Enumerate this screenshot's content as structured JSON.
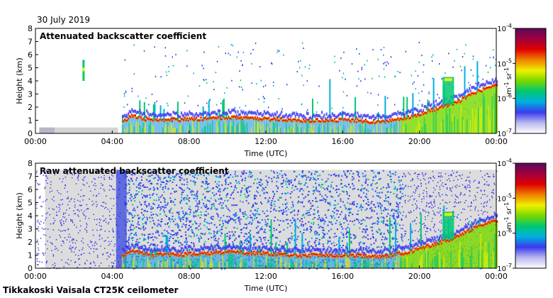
{
  "header": {
    "date": "30 July 2019",
    "footer": "Tikkakoski Vaisala CT25K ceilometer"
  },
  "colorbar": {
    "unit_base": "m",
    "unit_base_exp": "-1",
    "unit_sr": "sr",
    "unit_sr_exp": "-1",
    "stops": [
      "#ffffff",
      "#b9b9ee",
      "#3a3aef",
      "#00b0e0",
      "#00c872",
      "#78d800",
      "#f0f000",
      "#f08000",
      "#e00000",
      "#a00040",
      "#5a0a5a"
    ],
    "ticks": [
      {
        "base": "10",
        "exp": "-4",
        "value": 0.0001
      },
      {
        "base": "10",
        "exp": "-5",
        "value": 1e-05
      },
      {
        "base": "10",
        "exp": "-6",
        "value": 1e-06
      },
      {
        "base": "10",
        "exp": "-7",
        "value": 1e-07
      }
    ]
  },
  "chart_data": [
    {
      "type": "heatmap",
      "title": "Attenuated backscatter coefficient",
      "xlabel": "Time (UTC)",
      "ylabel": "Height (km)",
      "xticks": [
        "00:00",
        "04:00",
        "08:00",
        "12:00",
        "16:00",
        "20:00",
        "00:00"
      ],
      "yticks": [
        "0",
        "1",
        "2",
        "3",
        "4",
        "5",
        "6",
        "7",
        "8"
      ],
      "xlim_hours": [
        0,
        24
      ],
      "ylim_km": [
        0,
        8
      ],
      "color_scale": "log",
      "clim": [
        1e-07,
        0.0001
      ],
      "boundary_layer_top_km": [
        {
          "t": 4.5,
          "h": 0.9
        },
        {
          "t": 5.0,
          "h": 1.3
        },
        {
          "t": 6.0,
          "h": 1.0
        },
        {
          "t": 8.0,
          "h": 1.05
        },
        {
          "t": 10.0,
          "h": 1.2
        },
        {
          "t": 12.0,
          "h": 1.1
        },
        {
          "t": 14.0,
          "h": 0.95
        },
        {
          "t": 16.0,
          "h": 1.0
        },
        {
          "t": 18.0,
          "h": 0.85
        },
        {
          "t": 19.5,
          "h": 1.25
        },
        {
          "t": 20.5,
          "h": 1.7
        },
        {
          "t": 22.0,
          "h": 2.4
        },
        {
          "t": 23.0,
          "h": 3.2
        },
        {
          "t": 24.0,
          "h": 3.6
        }
      ]
    },
    {
      "type": "heatmap",
      "title": "Raw attenuated backscatter coefficient",
      "xlabel": "Time (UTC)",
      "ylabel": "Height (km)",
      "xticks": [
        "00:00",
        "04:00",
        "08:00",
        "12:00",
        "16:00",
        "20:00",
        "00:00"
      ],
      "yticks": [
        "0",
        "1",
        "2",
        "3",
        "4",
        "5",
        "6",
        "7",
        "8"
      ],
      "xlim_hours": [
        0,
        24
      ],
      "ylim_km": [
        0,
        8
      ],
      "color_scale": "log",
      "clim": [
        1e-07,
        0.0001
      ],
      "noise_top_km": 7.5,
      "boundary_layer_top_km": [
        {
          "t": 4.5,
          "h": 0.9
        },
        {
          "t": 5.0,
          "h": 1.3
        },
        {
          "t": 6.0,
          "h": 1.0
        },
        {
          "t": 8.0,
          "h": 1.05
        },
        {
          "t": 10.0,
          "h": 1.2
        },
        {
          "t": 12.0,
          "h": 1.1
        },
        {
          "t": 14.0,
          "h": 0.95
        },
        {
          "t": 16.0,
          "h": 1.0
        },
        {
          "t": 18.0,
          "h": 0.85
        },
        {
          "t": 19.5,
          "h": 1.25
        },
        {
          "t": 20.5,
          "h": 1.7
        },
        {
          "t": 22.0,
          "h": 2.4
        },
        {
          "t": 23.0,
          "h": 3.2
        },
        {
          "t": 24.0,
          "h": 3.6
        }
      ]
    }
  ]
}
